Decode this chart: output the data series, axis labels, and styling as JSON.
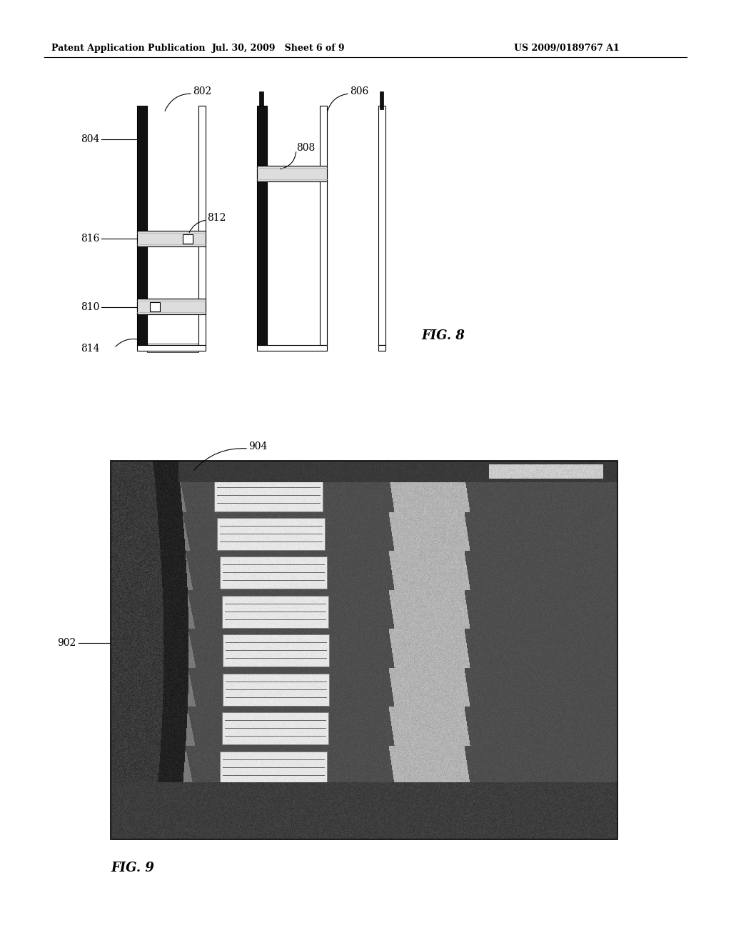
{
  "page_header_left": "Patent Application Publication",
  "page_header_mid": "Jul. 30, 2009   Sheet 6 of 9",
  "page_header_right": "US 2009/0189767 A1",
  "fig8_label": "FIG. 8",
  "fig9_label": "FIG. 9",
  "bg_color": "#ffffff",
  "header_fontsize": 9,
  "fig_label_fontsize": 13,
  "ref_fontsize": 10
}
